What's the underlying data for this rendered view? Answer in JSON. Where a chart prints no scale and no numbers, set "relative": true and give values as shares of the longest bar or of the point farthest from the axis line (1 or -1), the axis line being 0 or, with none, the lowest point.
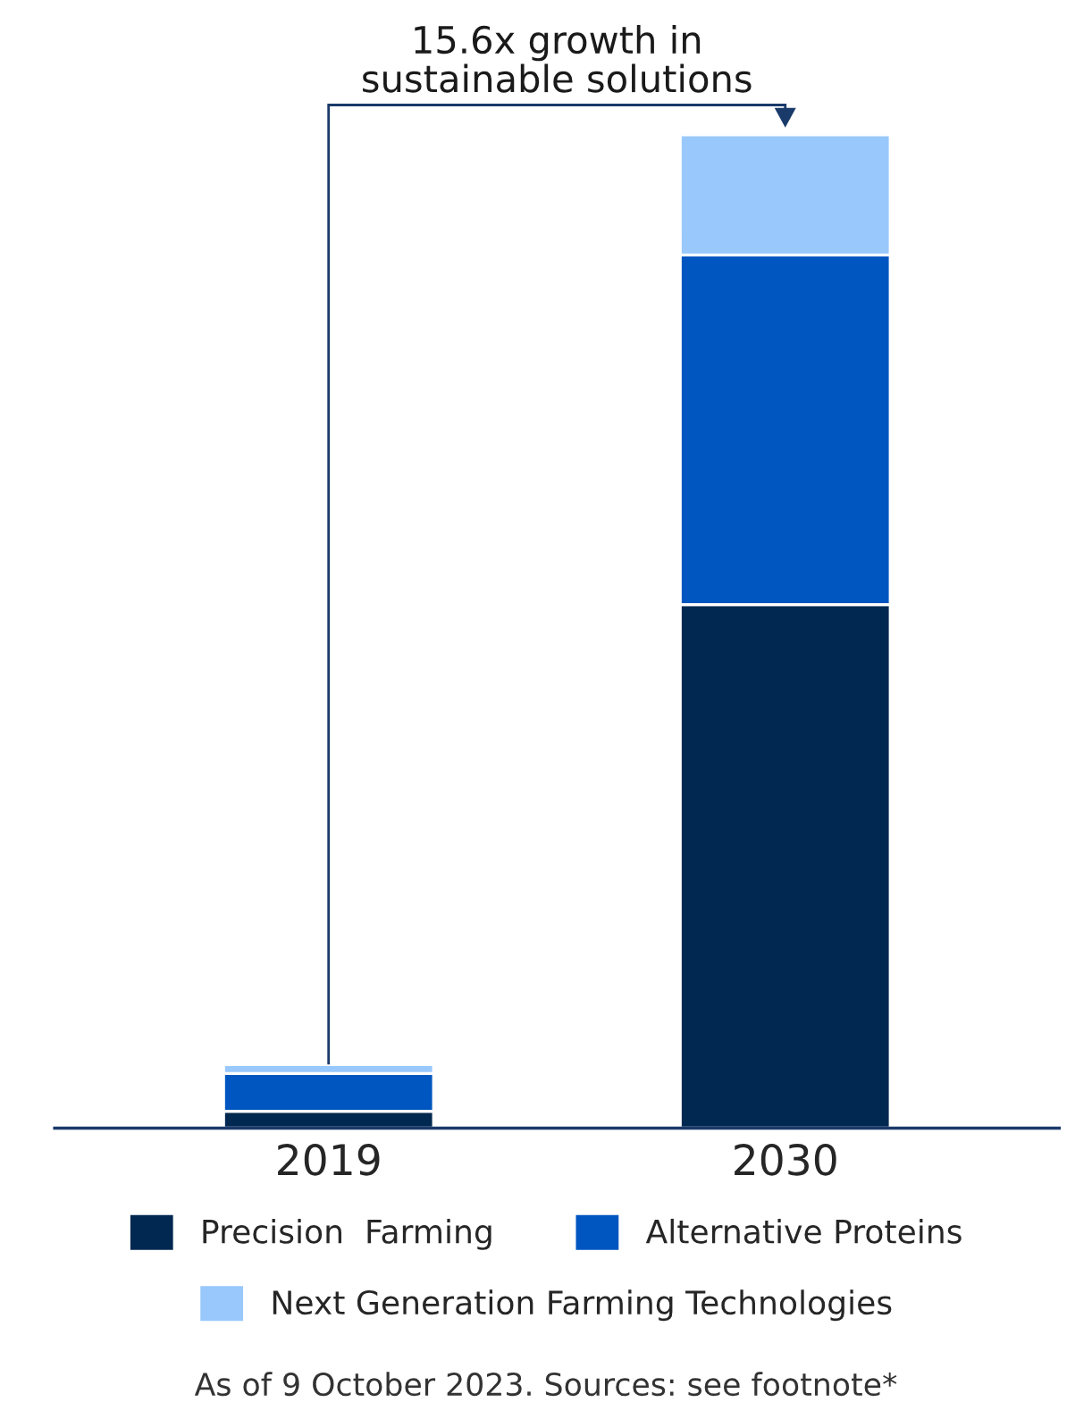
{
  "chart_data": {
    "type": "bar",
    "stacked": true,
    "relative": true,
    "categories": [
      "2019",
      "2030"
    ],
    "series": [
      {
        "name": "Precision  Farming",
        "color": "#002850",
        "values": [
          0.017,
          0.527
        ]
      },
      {
        "name": "Alternative Proteins",
        "color": "#0056c0",
        "values": [
          0.038,
          0.352
        ]
      },
      {
        "name": "Next Generation Farming Technologies",
        "color": "#98c8fc",
        "values": [
          0.009,
          0.121
        ]
      }
    ],
    "annotations": [
      "15.6x growth in\nsustainable solutions",
      "As of 9 October 2023. Sources: see footnote*"
    ],
    "legend": "bottom",
    "grid": false
  }
}
